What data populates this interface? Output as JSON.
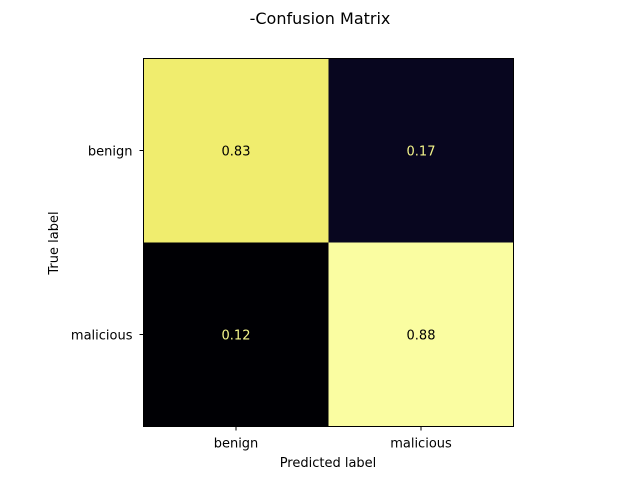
{
  "chart_data": {
    "type": "heatmap",
    "title": "-Confusion Matrix",
    "xlabel": "Predicted label",
    "ylabel": "True label",
    "x_categories": [
      "benign",
      "malicious"
    ],
    "y_categories": [
      "benign",
      "malicious"
    ],
    "values": [
      [
        0.83,
        0.17
      ],
      [
        0.12,
        0.88
      ]
    ],
    "value_labels": [
      [
        "0.83",
        "0.17"
      ],
      [
        "0.12",
        "0.88"
      ]
    ],
    "colormap": "inferno",
    "colors": {
      "cell_fills": [
        [
          "#f0ed6e",
          "#08061f"
        ],
        [
          "#000004",
          "#fafda1"
        ]
      ],
      "label_on_light": "#000000",
      "label_on_dark": "#f3f48a",
      "frame": "#000000"
    },
    "colorbar": false,
    "grid": false
  }
}
